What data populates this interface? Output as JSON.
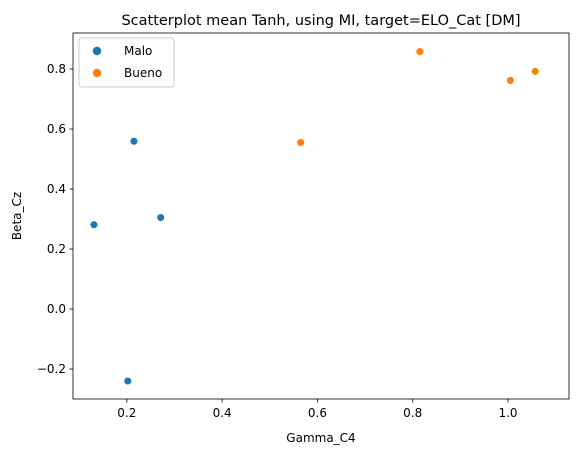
{
  "chart_data": {
    "type": "scatter",
    "title": "Scatterplot mean Tanh, using MI, target=ELO_Cat [DM]",
    "xlabel": "Gamma_C4",
    "ylabel": "Beta_Cz",
    "xlim": [
      0.087,
      1.128
    ],
    "ylim": [
      -0.3,
      0.92
    ],
    "xticks": [
      0.2,
      0.4,
      0.6,
      0.8,
      1.0
    ],
    "xtick_labels": [
      "0.2",
      "0.4",
      "0.6",
      "0.8",
      "1.0"
    ],
    "yticks": [
      -0.2,
      0.0,
      0.2,
      0.4,
      0.6,
      0.8
    ],
    "ytick_labels": [
      "−0.2",
      "0.0",
      "0.2",
      "0.4",
      "0.6",
      "0.8"
    ],
    "grid": false,
    "legend_position": "upper-left",
    "series": [
      {
        "name": "Malo",
        "color": "#1f77b4",
        "points": [
          {
            "x": 0.131,
            "y": 0.281
          },
          {
            "x": 0.215,
            "y": 0.559
          },
          {
            "x": 0.271,
            "y": 0.305
          },
          {
            "x": 0.202,
            "y": -0.24
          }
        ]
      },
      {
        "name": "Bueno",
        "color": "#ff7f0e",
        "points": [
          {
            "x": 0.565,
            "y": 0.555
          },
          {
            "x": 0.815,
            "y": 0.858
          },
          {
            "x": 1.005,
            "y": 0.762
          },
          {
            "x": 1.057,
            "y": 0.792
          }
        ]
      }
    ]
  }
}
